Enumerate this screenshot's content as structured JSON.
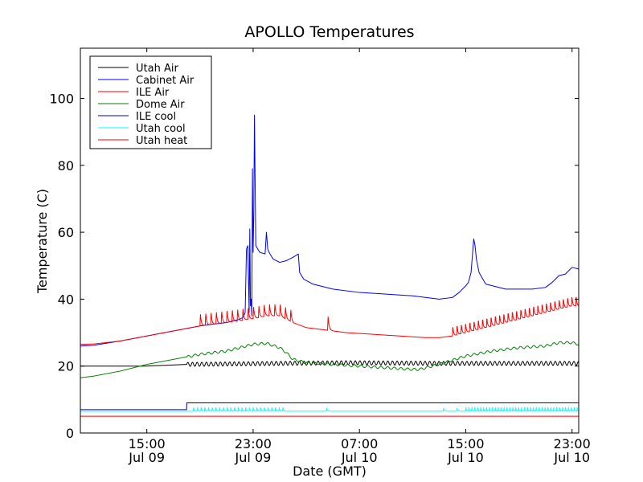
{
  "chart_data": {
    "type": "line",
    "title": "APOLLO Temperatures",
    "xlabel": "Date (GMT)",
    "ylabel": "Temperature (C)",
    "x_unit": "hours since Jul 09 10:00 GMT",
    "xlim": [
      0,
      37.5
    ],
    "ylim": [
      0,
      115
    ],
    "yticks": [
      0,
      20,
      40,
      60,
      80,
      100
    ],
    "ytick_labels": [
      "0",
      "20",
      "40",
      "60",
      "80",
      "100"
    ],
    "xticks": [
      {
        "value": 5,
        "time": "15:00",
        "date": "Jul 09"
      },
      {
        "value": 13,
        "time": "23:00",
        "date": "Jul 09"
      },
      {
        "value": 21,
        "time": "07:00",
        "date": "Jul 10"
      },
      {
        "value": 29,
        "time": "15:00",
        "date": "Jul 10"
      },
      {
        "value": 37,
        "time": "23:00",
        "date": "Jul 10"
      }
    ],
    "legend_position": "top-left",
    "series": [
      {
        "name": "Utah Air",
        "color": "#000000",
        "x": [
          0,
          5,
          8,
          15,
          20,
          27,
          37.5
        ],
        "y": [
          20,
          20,
          20.5,
          20.8,
          21,
          20.8,
          20.8
        ],
        "oscillation": {
          "start": 8,
          "end": 37.5,
          "period": 0.35,
          "amp": 0.6
        }
      },
      {
        "name": "Cabinet Air",
        "color": "#0000ff",
        "x": [
          0,
          1,
          3,
          5,
          7,
          9,
          11,
          12,
          12.2,
          12.3,
          12.4,
          12.5,
          12.6,
          12.7,
          12.75,
          12.8,
          12.85,
          12.9,
          12.95,
          13.0,
          13.05,
          13.1,
          13.2,
          13.5,
          13.9,
          14.0,
          14.1,
          14.2,
          14.5,
          15,
          15.5,
          16,
          16.4,
          16.5,
          16.8,
          17.5,
          19,
          21,
          23,
          25,
          27,
          28,
          28.5,
          29,
          29.2,
          29.4,
          29.5,
          29.6,
          29.7,
          29.8,
          30,
          30.5,
          32,
          34,
          35,
          35.5,
          36,
          36.5,
          37,
          37.5
        ],
        "y": [
          26,
          26.2,
          27.5,
          29,
          30.5,
          32,
          33,
          34,
          34.5,
          35,
          36,
          55,
          56,
          36,
          61,
          38,
          40,
          35,
          79,
          54,
          66,
          95,
          56,
          54,
          53.5,
          60,
          55,
          54,
          52,
          51,
          51.5,
          52.5,
          53.5,
          48,
          46,
          44.5,
          43,
          42,
          41.5,
          41,
          40,
          40.5,
          42,
          44,
          45,
          48,
          53,
          58,
          56,
          52,
          48,
          44.5,
          43,
          43,
          43.5,
          45,
          47,
          47.5,
          49.5,
          49
        ]
      },
      {
        "name": "ILE Air",
        "color": "#ff0000",
        "x": [
          0,
          1,
          3,
          5,
          7,
          9,
          12,
          13.5,
          14,
          15,
          15.5,
          16,
          17,
          18,
          19,
          20,
          22,
          24,
          26,
          27,
          28,
          29,
          31,
          33,
          35,
          37,
          37.5
        ],
        "y": [
          26.5,
          26.6,
          27.5,
          29,
          30.5,
          32,
          33.5,
          34.5,
          35,
          35,
          34,
          33,
          31.5,
          31,
          30.5,
          30,
          29.5,
          29,
          28.5,
          28.5,
          29,
          30,
          32,
          34,
          36,
          38,
          38
        ],
        "spikes": {
          "start": 9,
          "end": 16,
          "period": 0.4,
          "height": 3.8
        },
        "spikes2": {
          "start": 28,
          "end": 37.5,
          "period": 0.32,
          "height": 3.2
        },
        "single_spikes": [
          {
            "x": 18.6,
            "height": 4
          }
        ]
      },
      {
        "name": "Dome Air",
        "color": "#008000",
        "x": [
          0,
          1,
          3,
          5,
          7,
          9,
          11,
          12,
          13,
          14,
          15,
          15.5,
          16,
          17,
          19,
          21,
          23,
          25,
          25.5,
          27,
          29,
          31,
          33,
          35,
          36,
          37,
          37.5
        ],
        "y": [
          16.5,
          17,
          18.5,
          20.5,
          22,
          23.5,
          24.5,
          25.5,
          26.5,
          26.8,
          25.5,
          24,
          22,
          21,
          20.5,
          20,
          19.5,
          19,
          19,
          20.5,
          23,
          24.5,
          25.5,
          26,
          27,
          27,
          26.5
        ],
        "oscillation": {
          "start": 8,
          "end": 37.5,
          "period": 0.5,
          "amp": 0.35
        }
      },
      {
        "name": "ILE cool",
        "color": "#0000aa",
        "x": [
          0,
          8,
          8,
          37.5
        ],
        "y": [
          7,
          7,
          9,
          9
        ],
        "step": true
      },
      {
        "name": "Utah cool",
        "color": "#00ffff",
        "x": [
          0,
          37.5
        ],
        "y": [
          6.5,
          6.5
        ],
        "spikes": {
          "start": 8.5,
          "end": 15.5,
          "period": 0.28,
          "height": 1.2
        },
        "spikes2": {
          "start": 29,
          "end": 37.5,
          "period": 0.22,
          "height": 1.2
        },
        "single_spikes": [
          {
            "x": 18.5,
            "height": 0.8
          },
          {
            "x": 27.3,
            "height": 0.8
          },
          {
            "x": 28.3,
            "height": 0.8
          }
        ]
      },
      {
        "name": "Utah heat",
        "color": "#ff0000",
        "x": [
          0,
          37.5
        ],
        "y": [
          5,
          5
        ]
      }
    ]
  }
}
